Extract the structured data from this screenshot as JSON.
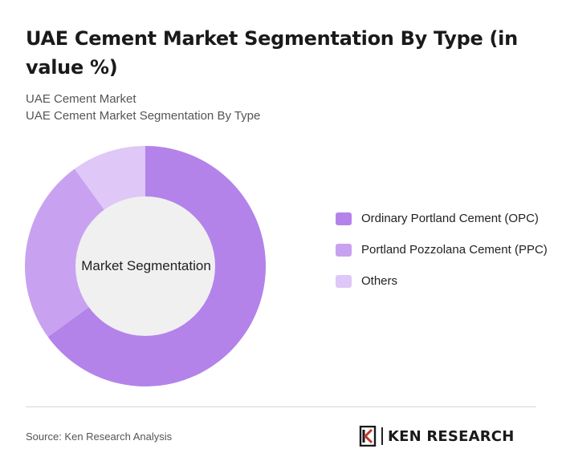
{
  "title": "UAE Cement Market Segmentation By Type (in value %)",
  "subtitle_lines": [
    "UAE Cement Market",
    "UAE Cement Market Segmentation By Type"
  ],
  "chart_data": {
    "type": "pie",
    "variant": "donut",
    "center_label": "Market Segmentation",
    "categories": [
      "Ordinary Portland Cement (OPC)",
      "Portland Pozzolana Cement (PPC)",
      "Others"
    ],
    "values": [
      65,
      25,
      10
    ],
    "colors": [
      "#b383ea",
      "#c8a2f0",
      "#dfc7f7"
    ],
    "legend_position": "right"
  },
  "source": "Source: Ken Research Analysis",
  "logo": {
    "text": "KEN RESEARCH",
    "icon": "ken-research-logo-icon"
  },
  "colors": {
    "center_fill": "#f0f0f0",
    "divider": "#d6d6d6"
  }
}
